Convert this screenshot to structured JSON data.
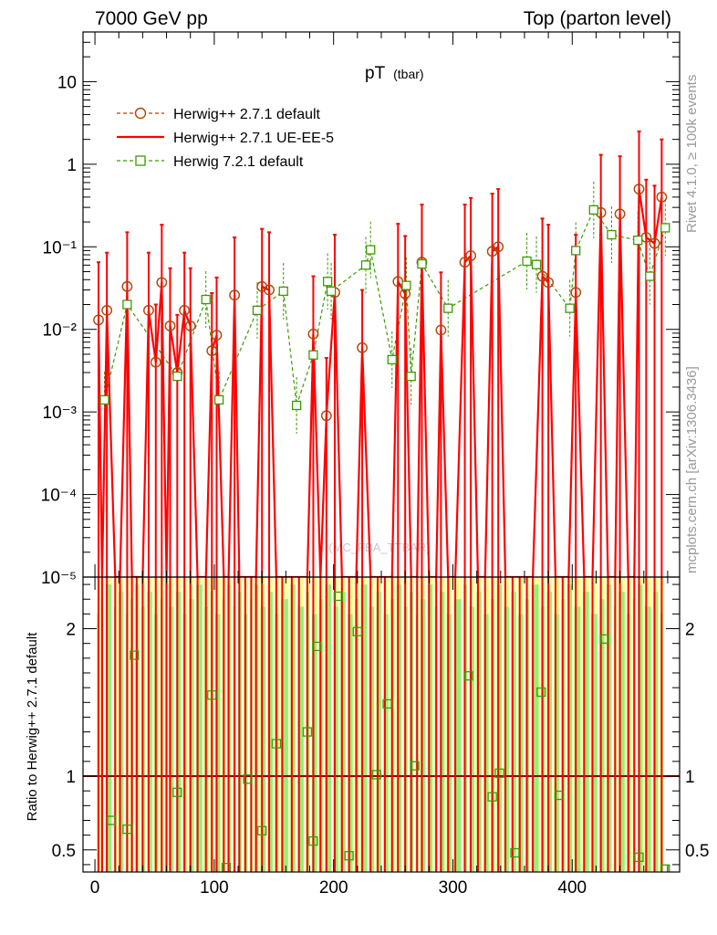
{
  "header": {
    "left": "7000 GeV pp",
    "right": "Top (parton level)"
  },
  "side_labels": {
    "rivet": "Rivet 4.1.0, ≥ 100k events",
    "mcplots": "mcplots.cern.ch [arXiv:1306.3436]"
  },
  "watermark": "(MC_FBA_TTBAR)",
  "colors": {
    "default": "#b24400",
    "ueee5": "#ff0000",
    "h7": "#3c9b00",
    "ratio_line": "#8b0000",
    "band_yellow": "#ffff99",
    "band_green": "#99ee77"
  },
  "chart_data": [
    {
      "type": "line",
      "title": "pT",
      "title_sub": "(tbar)",
      "yscale": "log",
      "xlim": [
        -10,
        490
      ],
      "ylim": [
        1e-05,
        40
      ],
      "x_ticks": [
        0,
        100,
        200,
        300,
        400
      ],
      "y_ticks": [
        {
          "value": 10,
          "label": "10"
        },
        {
          "value": 1,
          "label": "1"
        },
        {
          "value": 0.1,
          "label": "10⁻¹"
        },
        {
          "value": 0.01,
          "label": "10⁻²"
        },
        {
          "value": 0.001,
          "label": "10⁻³"
        },
        {
          "value": 0.0001,
          "label": "10⁻⁴"
        },
        {
          "value": 1e-05,
          "label": "10⁻⁵"
        }
      ],
      "legend": [
        {
          "name": "Herwig++ 2.7.1 default",
          "marker": "circle",
          "style": "dashed",
          "color": "#b24400"
        },
        {
          "name": "Herwig++ 2.7.1 UE-EE-5",
          "marker": "none",
          "style": "solid",
          "color": "#ff0000"
        },
        {
          "name": "Herwig 7.2.1 default",
          "marker": "square",
          "style": "dashed",
          "color": "#3c9b00"
        }
      ],
      "series": [
        {
          "name": "Herwig++ 2.7.1 default",
          "points": [
            [
              3,
              0.013
            ],
            [
              10,
              0.017
            ],
            [
              27,
              0.033
            ],
            [
              45,
              0.017
            ],
            [
              51,
              0.004
            ],
            [
              56,
              0.037
            ],
            [
              63,
              0.011
            ],
            [
              69,
              0.003
            ],
            [
              75,
              0.017
            ],
            [
              80,
              0.011
            ],
            [
              98,
              0.0055
            ],
            [
              102,
              0.0085
            ],
            [
              117,
              0.026
            ],
            [
              140,
              0.033
            ],
            [
              146,
              0.03
            ],
            [
              183,
              0.0088
            ],
            [
              194,
              0.0009
            ],
            [
              201,
              0.028
            ],
            [
              224,
              0.006
            ],
            [
              254,
              0.038
            ],
            [
              260,
              0.027
            ],
            [
              274,
              0.065
            ],
            [
              290,
              0.0098
            ],
            [
              310,
              0.065
            ],
            [
              315,
              0.078
            ],
            [
              333,
              0.088
            ],
            [
              338,
              0.1
            ],
            [
              375,
              0.044
            ],
            [
              380,
              0.037
            ],
            [
              403,
              0.028
            ],
            [
              424,
              0.26
            ],
            [
              440,
              0.25
            ],
            [
              456,
              0.5
            ],
            [
              462,
              0.13
            ],
            [
              469,
              0.11
            ],
            [
              475,
              0.4
            ]
          ]
        },
        {
          "name": "Herwig++ 2.7.1 UE-EE-5",
          "points": [
            [
              3,
              0.013
            ],
            [
              6,
              1e-05
            ],
            [
              10,
              0.017
            ],
            [
              17,
              1e-05
            ],
            [
              21,
              1e-05
            ],
            [
              27,
              0.03
            ],
            [
              31,
              1e-05
            ],
            [
              35,
              1e-05
            ],
            [
              40,
              1e-05
            ],
            [
              45,
              0.017
            ],
            [
              51,
              0.004
            ],
            [
              56,
              0.037
            ],
            [
              60,
              1e-05
            ],
            [
              63,
              0.011
            ],
            [
              69,
              0.003
            ],
            [
              75,
              0.017
            ],
            [
              80,
              0.011
            ],
            [
              86,
              1e-05
            ],
            [
              93,
              1e-05
            ],
            [
              98,
              0.0055
            ],
            [
              102,
              0.0085
            ],
            [
              108,
              1e-05
            ],
            [
              112,
              1e-05
            ],
            [
              117,
              0.026
            ],
            [
              121,
              1e-05
            ],
            [
              126,
              1e-05
            ],
            [
              131,
              1e-05
            ],
            [
              135,
              1e-05
            ],
            [
              140,
              0.033
            ],
            [
              146,
              0.03
            ],
            [
              152,
              1e-05
            ],
            [
              157,
              1e-05
            ],
            [
              165,
              1e-05
            ],
            [
              171,
              1e-05
            ],
            [
              178,
              1e-05
            ],
            [
              183,
              0.0088
            ],
            [
              189,
              1e-05
            ],
            [
              194,
              0.0009
            ],
            [
              201,
              0.028
            ],
            [
              207,
              1e-05
            ],
            [
              213,
              1e-05
            ],
            [
              219,
              1e-05
            ],
            [
              224,
              0.006
            ],
            [
              231,
              1e-05
            ],
            [
              237,
              1e-05
            ],
            [
              243,
              1e-05
            ],
            [
              249,
              1e-05
            ],
            [
              254,
              0.038
            ],
            [
              260,
              0.027
            ],
            [
              265,
              1e-05
            ],
            [
              270,
              1e-05
            ],
            [
              274,
              0.065
            ],
            [
              280,
              1e-05
            ],
            [
              286,
              1e-05
            ],
            [
              290,
              0.0098
            ],
            [
              296,
              1e-05
            ],
            [
              302,
              1e-05
            ],
            [
              310,
              0.065
            ],
            [
              315,
              0.078
            ],
            [
              321,
              1e-05
            ],
            [
              327,
              1e-05
            ],
            [
              333,
              0.088
            ],
            [
              338,
              0.1
            ],
            [
              344,
              1e-05
            ],
            [
              350,
              1e-05
            ],
            [
              356,
              1e-05
            ],
            [
              362,
              1e-05
            ],
            [
              367,
              1e-05
            ],
            [
              375,
              0.044
            ],
            [
              380,
              0.037
            ],
            [
              386,
              1e-05
            ],
            [
              392,
              1e-05
            ],
            [
              397,
              1e-05
            ],
            [
              403,
              0.028
            ],
            [
              410,
              1e-05
            ],
            [
              417,
              1e-05
            ],
            [
              424,
              0.26
            ],
            [
              430,
              1e-05
            ],
            [
              436,
              1e-05
            ],
            [
              440,
              0.25
            ],
            [
              447,
              1e-05
            ],
            [
              452,
              1e-05
            ],
            [
              456,
              0.5
            ],
            [
              462,
              0.13
            ],
            [
              469,
              0.11
            ],
            [
              475,
              0.4
            ]
          ]
        },
        {
          "name": "Herwig 7.2.1 default",
          "points": [
            [
              8,
              0.0014
            ],
            [
              27,
              0.02
            ],
            [
              69,
              0.0027
            ],
            [
              93,
              0.023
            ],
            [
              104,
              0.0014
            ],
            [
              136,
              0.017
            ],
            [
              158,
              0.029
            ],
            [
              169,
              0.0012
            ],
            [
              183,
              0.0049
            ],
            [
              195,
              0.038
            ],
            [
              198,
              0.029
            ],
            [
              227,
              0.06
            ],
            [
              231,
              0.092
            ],
            [
              249,
              0.0043
            ],
            [
              261,
              0.034
            ],
            [
              265,
              0.0027
            ],
            [
              274,
              0.062
            ],
            [
              296,
              0.018
            ],
            [
              362,
              0.067
            ],
            [
              370,
              0.061
            ],
            [
              398,
              0.018
            ],
            [
              403,
              0.09
            ],
            [
              418,
              0.28
            ],
            [
              433,
              0.14
            ],
            [
              455,
              0.12
            ],
            [
              465,
              0.044
            ],
            [
              478,
              0.17
            ]
          ]
        }
      ]
    },
    {
      "type": "line",
      "ylabel": "Ratio to Herwig++ 2.7.1 default",
      "xlim": [
        -10,
        490
      ],
      "ylim": [
        0.35,
        2.35
      ],
      "x_ticks": [
        0,
        100,
        200,
        300,
        400
      ],
      "y_ticks": [
        {
          "value": 0.5,
          "label": "0.5"
        },
        {
          "value": 1,
          "label": "1"
        },
        {
          "value": 2,
          "label": "2"
        }
      ],
      "reference_line": 1,
      "series": [
        {
          "name": "Herwig 7.2.1 default / Herwig++ 2.7.1 default",
          "points": [
            [
              14,
              0.7
            ],
            [
              27,
              0.64
            ],
            [
              33,
              1.82
            ],
            [
              69,
              0.89
            ],
            [
              98,
              1.55
            ],
            [
              110,
              0.38
            ],
            [
              128,
              0.98
            ],
            [
              140,
              0.63
            ],
            [
              152,
              1.22
            ],
            [
              178,
              1.3
            ],
            [
              183,
              0.56
            ],
            [
              186,
              1.88
            ],
            [
              204,
              2.22
            ],
            [
              213,
              0.46
            ],
            [
              220,
              1.98
            ],
            [
              236,
              1.01
            ],
            [
              245,
              1.49
            ],
            [
              268,
              1.07
            ],
            [
              313,
              1.68
            ],
            [
              333,
              0.86
            ],
            [
              339,
              1.02
            ],
            [
              352,
              0.48
            ],
            [
              374,
              1.57
            ],
            [
              389,
              0.87
            ],
            [
              427,
              1.93
            ],
            [
              456,
              0.45
            ],
            [
              478,
              0.37
            ]
          ]
        }
      ]
    }
  ]
}
